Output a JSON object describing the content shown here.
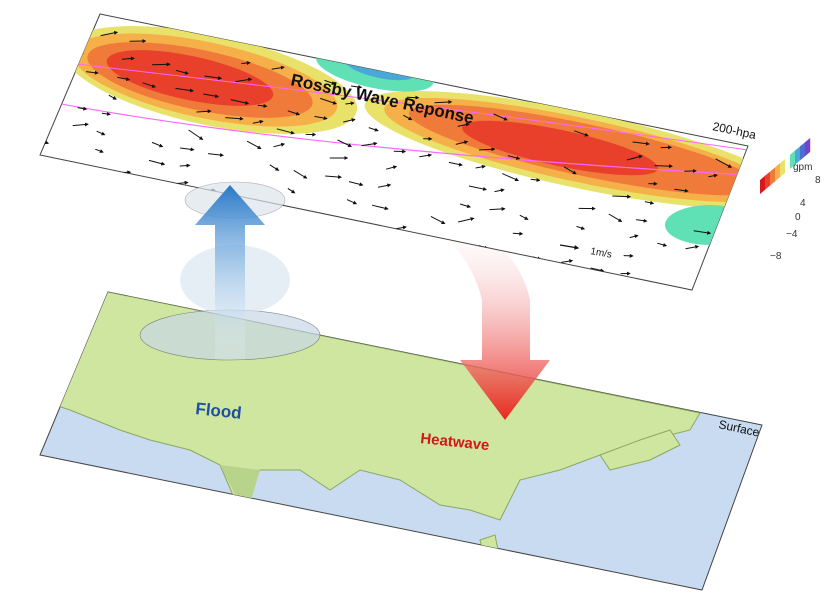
{
  "upper_layer": {
    "title": "Rossby Wave Reponse",
    "level_label": "200-hpa",
    "reference_vector_label": "1m/s"
  },
  "colorbar": {
    "unit": "gpm",
    "ticks": [
      "8",
      "4",
      "0",
      "−4",
      "−8"
    ],
    "colors": [
      "#d7191c",
      "#e8402a",
      "#f07a3a",
      "#f5b04a",
      "#e8e26a",
      "#ffffff",
      "#5fe0b5",
      "#4aa8d8",
      "#4a6fd0",
      "#7a3fd0"
    ]
  },
  "lower_layer": {
    "level_label": "Surface",
    "flood_label": "Flood",
    "heatwave_label": "Heatwave"
  },
  "colors": {
    "land": "#cfe6a0",
    "ocean": "#c9dbf0",
    "flood_arrow": "#2a78c8",
    "heatwave_arrow": "#e8281e",
    "flood_text": "#1f4fa0",
    "heatwave_text": "#d01818"
  }
}
